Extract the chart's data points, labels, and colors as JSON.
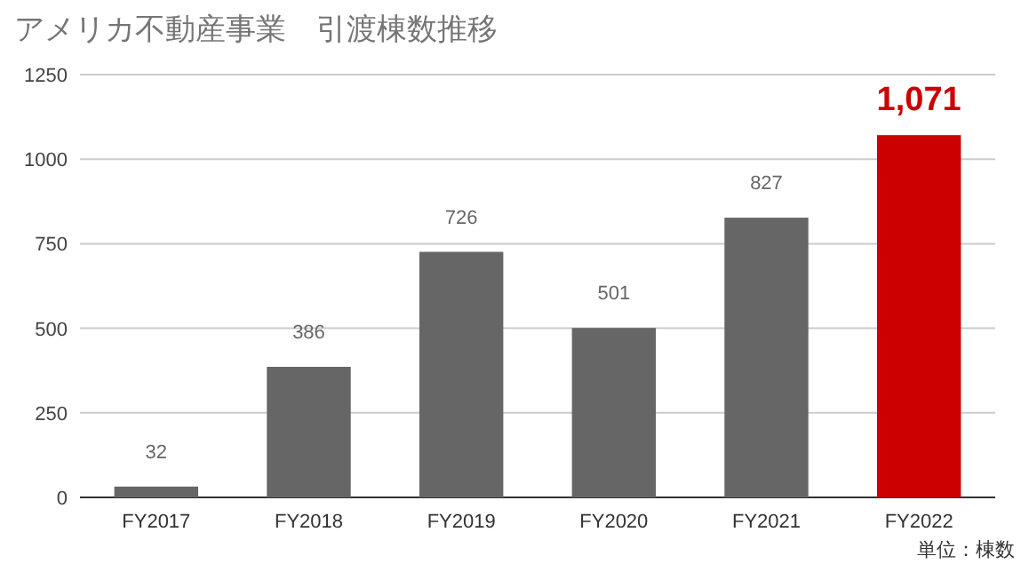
{
  "chart_data": {
    "type": "bar",
    "title": "アメリカ不動産事業　引渡棟数推移",
    "categories": [
      "FY2017",
      "FY2018",
      "FY2019",
      "FY2020",
      "FY2021",
      "FY2022"
    ],
    "values": [
      32,
      386,
      726,
      501,
      827,
      1071
    ],
    "colors": [
      "#666666",
      "#666666",
      "#666666",
      "#666666",
      "#666666",
      "#cc0000"
    ],
    "value_labels": [
      "32",
      "386",
      "726",
      "501",
      "827",
      "1,071"
    ],
    "ylim": [
      0,
      1250
    ],
    "yticks": [
      0,
      250,
      500,
      750,
      1000,
      1250
    ],
    "grid": "y",
    "annotations": [
      "単位：棟数"
    ]
  }
}
